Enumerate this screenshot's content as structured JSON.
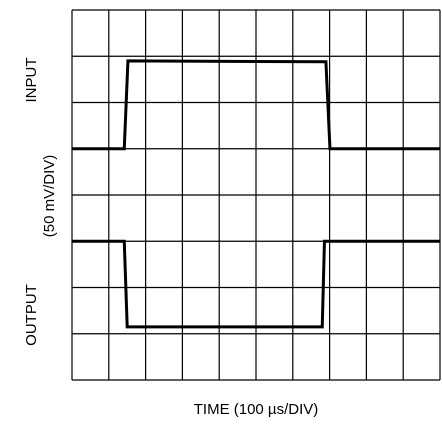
{
  "chart_data": {
    "type": "line",
    "ylabel": "(50 mV/DIV)",
    "xlabel": "TIME (100 µs/DIV)",
    "xlim": [
      0,
      10
    ],
    "ylim": [
      0,
      8
    ],
    "xticks": [
      0,
      1,
      2,
      3,
      4,
      5,
      6,
      7,
      8,
      9,
      10
    ],
    "yticks": [
      0,
      1,
      2,
      3,
      4,
      5,
      6,
      7,
      8
    ],
    "grid": true,
    "series": [
      {
        "name": "INPUT",
        "color": "#000000",
        "x": [
          0,
          1.42,
          1.52,
          6.9,
          7.01,
          10
        ],
        "values": [
          5,
          5,
          6.9,
          6.88,
          5,
          5
        ]
      },
      {
        "name": "OUTPUT",
        "color": "#000000",
        "x": [
          0,
          1.42,
          1.5,
          6.8,
          6.86,
          10
        ],
        "values": [
          3,
          3,
          1.15,
          1.15,
          3,
          3
        ]
      }
    ]
  }
}
